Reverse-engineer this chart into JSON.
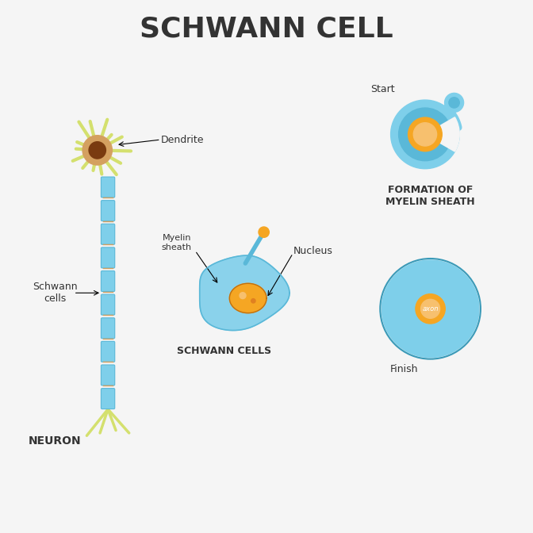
{
  "title": "SCHWANN CELL",
  "bg_color": "#f5f5f5",
  "label_neuron": "NEURON",
  "label_schwann_cells": "Schwann\ncells",
  "label_dendrite": "Dendrite",
  "label_myelin_sheath": "Myelin\nsheath",
  "label_nucleus": "Nucleus",
  "label_schwann_cells2": "SCHWANN CELLS",
  "label_formation": "FORMATION OF\nMYELIN SHEATH",
  "label_start": "Start",
  "label_finish": "Finish",
  "color_blue_light": "#7ecfea",
  "color_blue_mid": "#5ab8d8",
  "color_blue_dark": "#3a9ab8",
  "color_orange": "#f5a623",
  "color_orange_light": "#f7c06e",
  "color_yellow_green": "#d4e06e",
  "color_brown": "#7a3b10",
  "color_tan": "#d4a060",
  "color_dark_text": "#333333",
  "title_fontsize": 26,
  "label_fontsize": 9,
  "neuron_label_fontsize": 10
}
